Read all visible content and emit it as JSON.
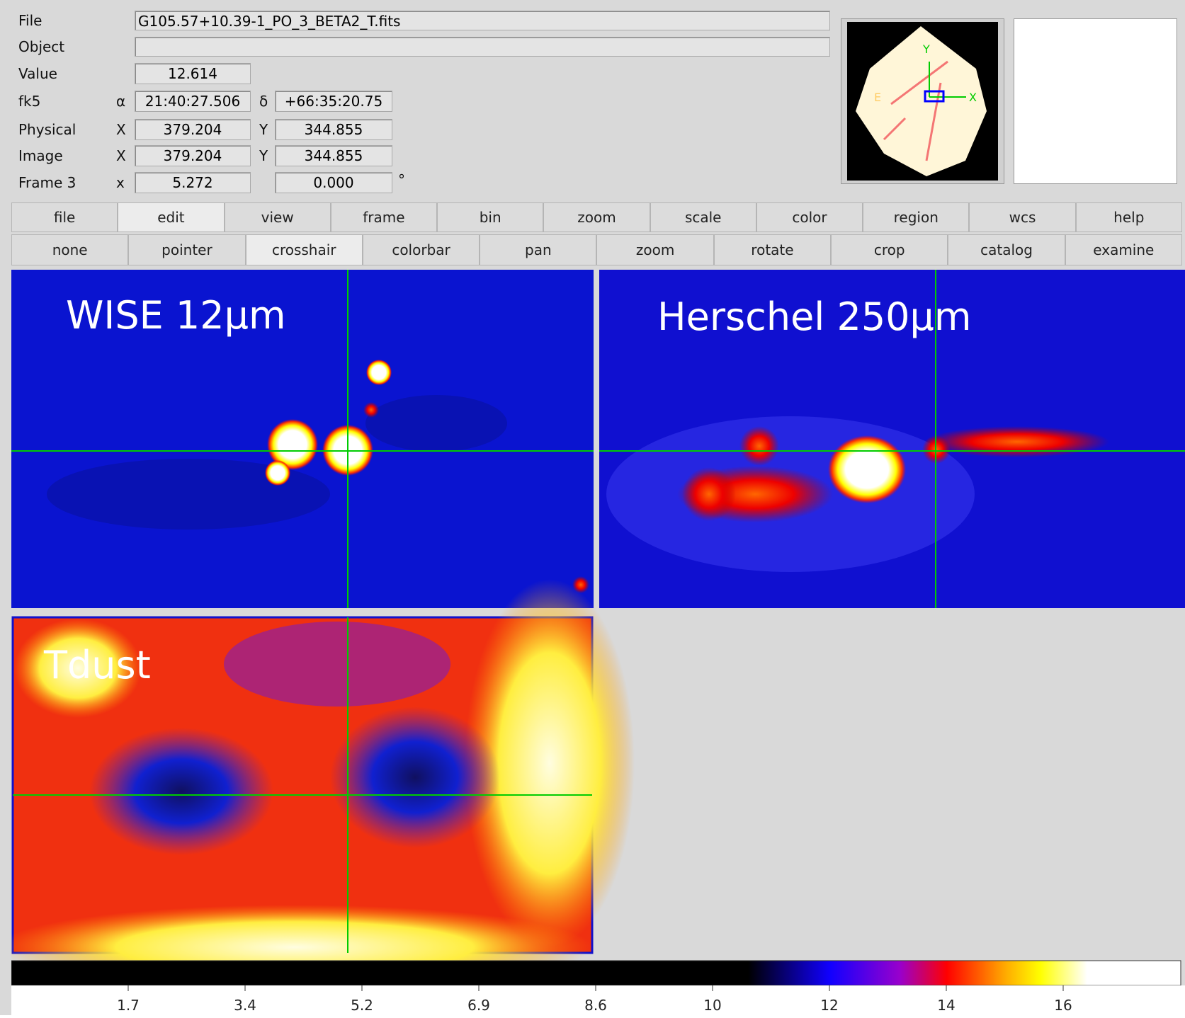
{
  "header": {
    "rows": [
      {
        "label": "File",
        "fields": [
          "G105.57+10.39-1_PO_3_BETA2_T.fits"
        ]
      },
      {
        "label": "Object"
      },
      {
        "label": "Value",
        "fields": [
          "12.614"
        ]
      },
      {
        "label": "fk5",
        "symbols": [
          "α",
          "δ"
        ],
        "fields": [
          "21:40:27.506",
          "+66:35:20.75"
        ]
      },
      {
        "label": "Physical",
        "symbols": [
          "X",
          "Y"
        ],
        "fields": [
          "379.204",
          "344.855"
        ]
      },
      {
        "label": "Image",
        "symbols": [
          "X",
          "Y"
        ],
        "fields": [
          "379.204",
          "344.855"
        ]
      },
      {
        "label": "Frame 3",
        "symbols": [
          "x"
        ],
        "fields": [
          "5.272",
          "0.000"
        ],
        "unit": "°"
      }
    ],
    "panner": {
      "labels": [
        "Y",
        "E",
        "X"
      ]
    }
  },
  "menu": [
    "file",
    "edit",
    "view",
    "frame",
    "bin",
    "zoom",
    "scale",
    "color",
    "region",
    "wcs",
    "help"
  ],
  "toolbar": [
    "none",
    "pointer",
    "crosshair",
    "colorbar",
    "pan",
    "zoom",
    "rotate",
    "crop",
    "catalog",
    "examine"
  ],
  "frames": [
    "WISE 12µm",
    "Herschel 250µm",
    "Tdust"
  ],
  "colorbar": {
    "ticks": [
      "1.7",
      "3.4",
      "5.2",
      "6.9",
      "8.6",
      "10",
      "12",
      "14",
      "16"
    ]
  }
}
